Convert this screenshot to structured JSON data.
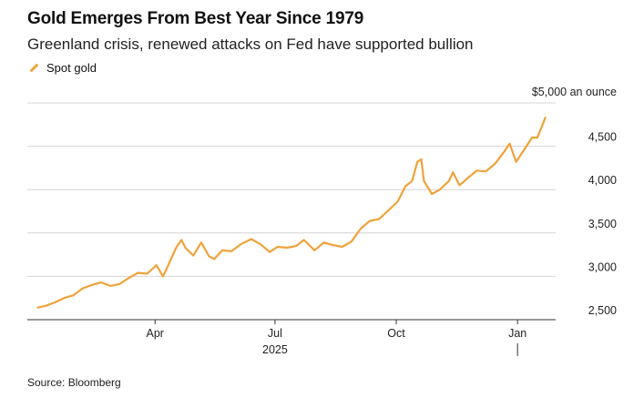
{
  "chart_data": {
    "type": "line",
    "title": "Gold Emerges From Best Year Since 1979",
    "subtitle": "Greenland crisis, renewed attacks on Fed have supported bullion",
    "source": "Source: Bloomberg",
    "ylabel": "",
    "y_unit_label": "$5,000 an ounce",
    "ylim": [
      2500,
      5000
    ],
    "yticks": [
      2500,
      3000,
      3500,
      4000,
      4500
    ],
    "ytick_labels": [
      "2,500",
      "3,000",
      "3,500",
      "4,000",
      "4,500"
    ],
    "xlim": [
      "2025-01-01",
      "2026-01-23"
    ],
    "xticks": [
      "2025-04-01",
      "2025-07-01",
      "2025-10-01",
      "2026-01-01"
    ],
    "xtick_labels": [
      "Apr",
      "Jul",
      "Oct",
      "Jan"
    ],
    "year_label": "2025",
    "grid": true,
    "legend_position": "top-left",
    "series": [
      {
        "name": "Spot gold",
        "color": "#f0a23a",
        "x": [
          "2025-01-02",
          "2025-01-08",
          "2025-01-15",
          "2025-01-22",
          "2025-01-29",
          "2025-02-05",
          "2025-02-12",
          "2025-02-19",
          "2025-02-26",
          "2025-03-05",
          "2025-03-12",
          "2025-03-19",
          "2025-03-26",
          "2025-04-02",
          "2025-04-07",
          "2025-04-09",
          "2025-04-14",
          "2025-04-17",
          "2025-04-21",
          "2025-04-24",
          "2025-04-30",
          "2025-05-06",
          "2025-05-12",
          "2025-05-16",
          "2025-05-22",
          "2025-05-29",
          "2025-06-05",
          "2025-06-13",
          "2025-06-20",
          "2025-06-27",
          "2025-07-03",
          "2025-07-10",
          "2025-07-17",
          "2025-07-23",
          "2025-07-31",
          "2025-08-07",
          "2025-08-14",
          "2025-08-21",
          "2025-08-28",
          "2025-09-04",
          "2025-09-11",
          "2025-09-18",
          "2025-09-25",
          "2025-10-02",
          "2025-10-08",
          "2025-10-13",
          "2025-10-17",
          "2025-10-20",
          "2025-10-22",
          "2025-10-28",
          "2025-11-03",
          "2025-11-10",
          "2025-11-13",
          "2025-11-18",
          "2025-11-24",
          "2025-12-01",
          "2025-12-08",
          "2025-12-15",
          "2025-12-22",
          "2025-12-26",
          "2025-12-31",
          "2026-01-06",
          "2026-01-12",
          "2026-01-16",
          "2026-01-20",
          "2026-01-22"
        ],
        "values": [
          2640,
          2660,
          2700,
          2750,
          2780,
          2860,
          2900,
          2930,
          2890,
          2910,
          2980,
          3040,
          3030,
          3130,
          3000,
          3060,
          3230,
          3330,
          3420,
          3330,
          3240,
          3390,
          3230,
          3200,
          3300,
          3290,
          3370,
          3430,
          3370,
          3280,
          3340,
          3330,
          3350,
          3420,
          3300,
          3390,
          3360,
          3340,
          3400,
          3550,
          3640,
          3660,
          3760,
          3860,
          4040,
          4100,
          4320,
          4350,
          4100,
          3950,
          4000,
          4100,
          4200,
          4050,
          4130,
          4220,
          4210,
          4300,
          4440,
          4530,
          4320,
          4460,
          4600,
          4600,
          4750,
          4830
        ]
      }
    ]
  }
}
